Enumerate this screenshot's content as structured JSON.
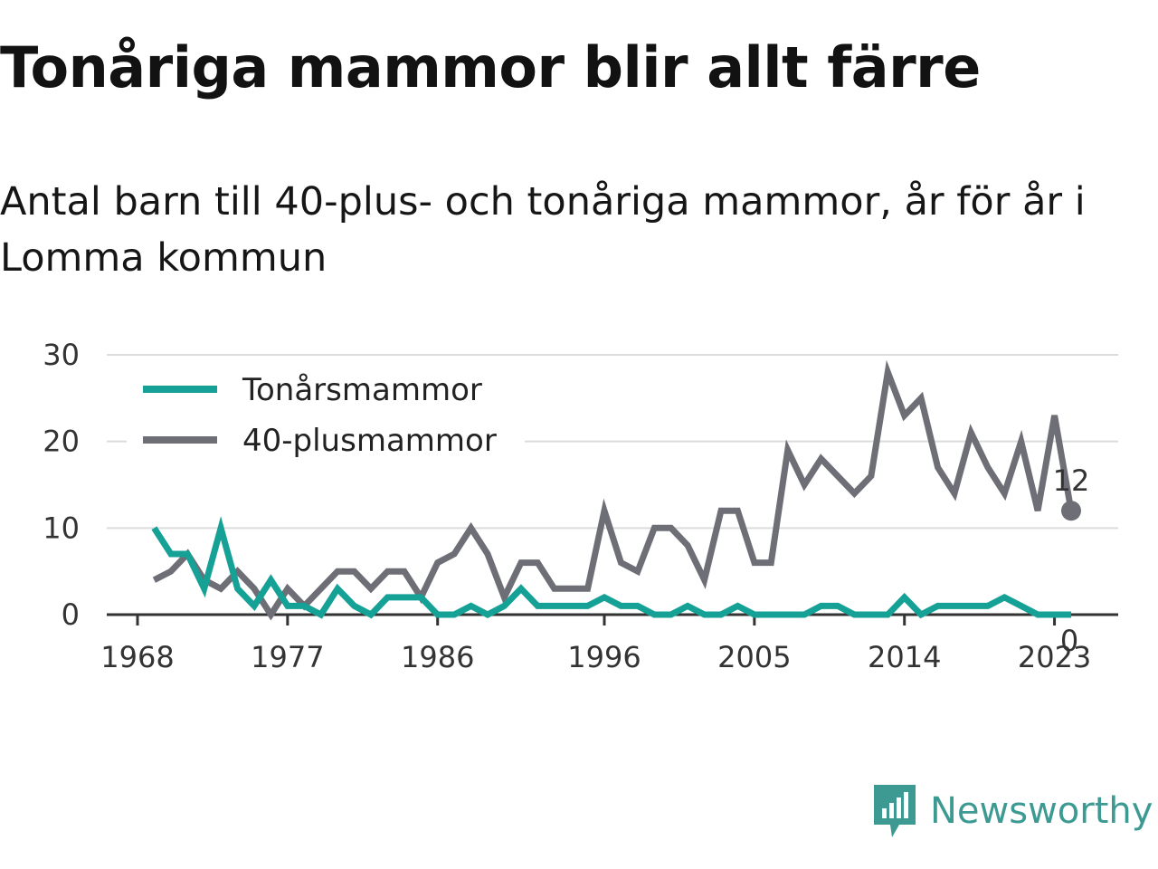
{
  "title": "Tonåriga mammor blir allt färre",
  "subtitle": "Antal barn till 40-plus- och tonåriga mammor, år för år i Lomma kommun",
  "brand": {
    "name": "Newsworthy",
    "color": "#3c9a93"
  },
  "chart_data": {
    "type": "line",
    "title": "Tonåriga mammor blir allt färre",
    "subtitle": "Antal barn till 40-plus- och tonåriga mammor, år för år i Lomma kommun",
    "xlabel": "",
    "ylabel": "",
    "x": [
      1969,
      1970,
      1971,
      1972,
      1973,
      1974,
      1975,
      1976,
      1977,
      1978,
      1979,
      1980,
      1981,
      1982,
      1983,
      1984,
      1985,
      1986,
      1987,
      1988,
      1989,
      1990,
      1991,
      1992,
      1993,
      1994,
      1995,
      1996,
      1997,
      1998,
      1999,
      2000,
      2001,
      2002,
      2003,
      2004,
      2005,
      2006,
      2007,
      2008,
      2009,
      2010,
      2011,
      2012,
      2013,
      2014,
      2015,
      2016,
      2017,
      2018,
      2019,
      2020,
      2021,
      2022,
      2023,
      2024
    ],
    "x_ticks": [
      1968,
      1977,
      1986,
      1996,
      2005,
      2014,
      2023
    ],
    "xlim": [
      1968,
      2025
    ],
    "y_ticks": [
      0,
      10,
      20,
      30
    ],
    "ylim": [
      0,
      30
    ],
    "grid": true,
    "legend_position": "top-left",
    "series": [
      {
        "name": "Tonårsmammor",
        "color": "#16a196",
        "values": [
          10,
          7,
          7,
          3,
          10,
          3,
          1,
          4,
          1,
          1,
          0,
          3,
          1,
          0,
          2,
          2,
          2,
          0,
          0,
          1,
          0,
          1,
          3,
          1,
          1,
          1,
          1,
          2,
          1,
          1,
          0,
          0,
          1,
          0,
          0,
          1,
          0,
          0,
          0,
          0,
          1,
          1,
          0,
          0,
          0,
          2,
          0,
          1,
          1,
          1,
          1,
          2,
          1,
          0,
          0,
          0
        ],
        "end_label": "0"
      },
      {
        "name": "40-plusmammor",
        "color": "#6e6e76",
        "values": [
          4,
          5,
          7,
          4,
          3,
          5,
          3,
          0,
          3,
          1,
          3,
          5,
          5,
          3,
          5,
          5,
          2,
          6,
          7,
          10,
          7,
          2,
          6,
          6,
          3,
          3,
          3,
          12,
          6,
          5,
          10,
          10,
          8,
          4,
          12,
          12,
          6,
          6,
          19,
          15,
          18,
          16,
          14,
          16,
          28,
          23,
          25,
          17,
          14,
          21,
          17,
          14,
          20,
          12,
          23,
          12
        ],
        "end_label": "12"
      }
    ]
  }
}
